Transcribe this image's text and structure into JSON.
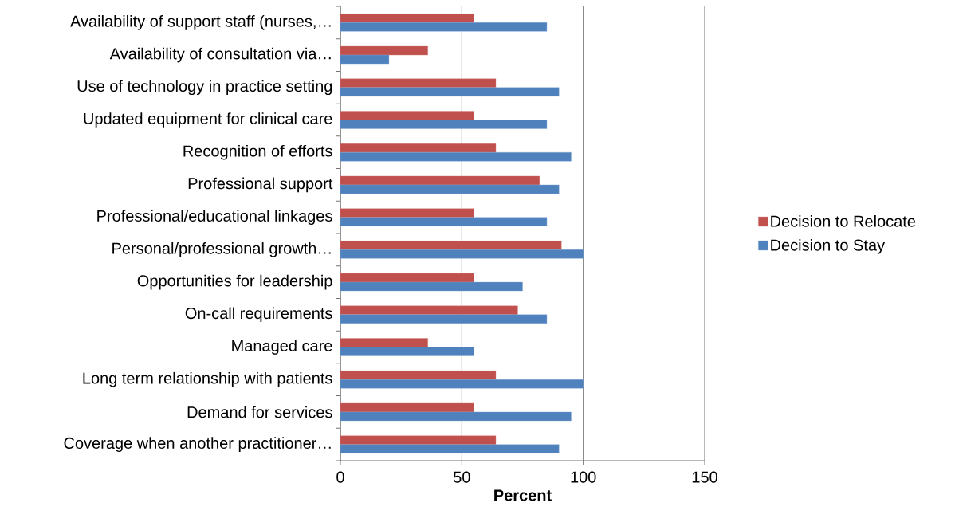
{
  "chart_data": {
    "type": "bar",
    "orientation": "horizontal",
    "xlabel": "Percent",
    "categories": [
      "Availability of support staff (nurses,…",
      "Availability of consultation via…",
      "Use of technology in practice setting",
      "Updated equipment for clinical care",
      "Recognition of efforts",
      "Professional support",
      "Professional/educational linkages",
      "Personal/professional growth…",
      "Opportunities for leadership",
      "On-call requirements",
      "Managed care",
      "Long term relationship with patients",
      "Demand for services",
      "Coverage when another practitioner…"
    ],
    "series": [
      {
        "name": "Decision to Relocate",
        "color": "#c0504d",
        "values": [
          55,
          36,
          64,
          55,
          64,
          82,
          55,
          91,
          55,
          73,
          36,
          64,
          55,
          64
        ]
      },
      {
        "name": "Decision to Stay",
        "color": "#4f81bd",
        "values": [
          85,
          20,
          90,
          85,
          95,
          90,
          85,
          100,
          75,
          85,
          55,
          100,
          95,
          90
        ]
      }
    ],
    "xlim": [
      0,
      150
    ],
    "xticks": [
      0,
      50,
      100,
      150
    ],
    "grid": "x",
    "legend": "right"
  }
}
